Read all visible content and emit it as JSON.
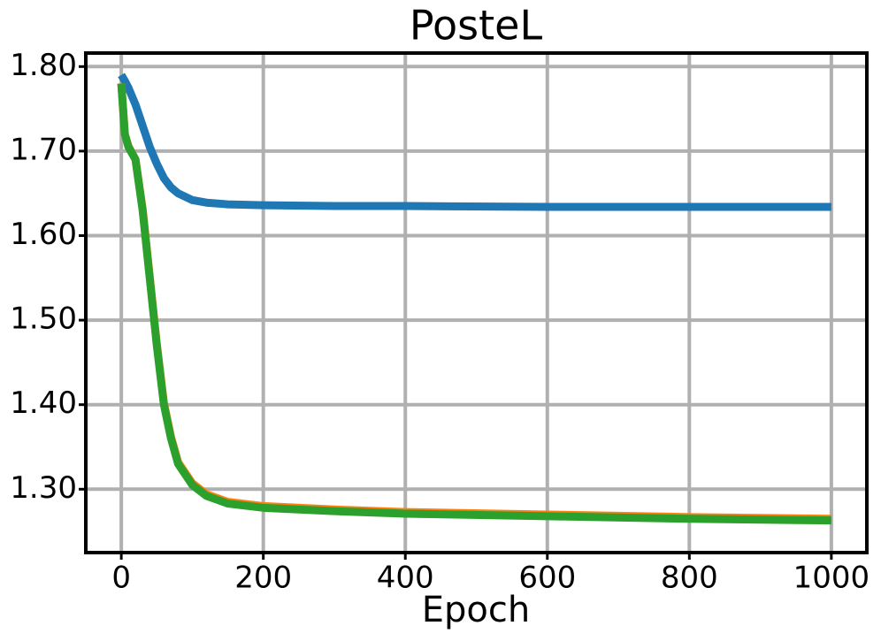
{
  "chart_data": {
    "type": "line",
    "title": "PosteL",
    "xlabel": "Epoch",
    "x": [
      0,
      5,
      10,
      20,
      30,
      40,
      50,
      60,
      70,
      80,
      100,
      120,
      150,
      200,
      300,
      400,
      600,
      800,
      1000
    ],
    "series": [
      {
        "color": "#1f77b4",
        "values": [
          1.79,
          1.783,
          1.775,
          1.755,
          1.73,
          1.705,
          1.685,
          1.668,
          1.657,
          1.65,
          1.642,
          1.639,
          1.637,
          1.636,
          1.635,
          1.635,
          1.634,
          1.634,
          1.634
        ]
      },
      {
        "color": "#ff7f0e",
        "values": [
          1.78,
          1.72,
          1.706,
          1.69,
          1.632,
          1.552,
          1.472,
          1.402,
          1.362,
          1.332,
          1.307,
          1.294,
          1.285,
          1.28,
          1.276,
          1.273,
          1.27,
          1.267,
          1.265
        ]
      },
      {
        "color": "#2ca02c",
        "values": [
          1.78,
          1.72,
          1.705,
          1.69,
          1.63,
          1.55,
          1.47,
          1.4,
          1.36,
          1.33,
          1.305,
          1.292,
          1.283,
          1.278,
          1.274,
          1.271,
          1.268,
          1.265,
          1.263
        ]
      }
    ],
    "xlim": [
      -50,
      1050
    ],
    "xticks": [
      0,
      200,
      400,
      600,
      800,
      1000
    ],
    "ylim": [
      1.225,
      1.816
    ],
    "yticks": [
      {
        "value": 1.3,
        "label": "1.30"
      },
      {
        "value": 1.4,
        "label": "1.40"
      },
      {
        "value": 1.5,
        "label": "1.50"
      },
      {
        "value": 1.6,
        "label": "1.60"
      },
      {
        "value": 1.7,
        "label": "1.70"
      },
      {
        "value": 1.8,
        "label": "1.80"
      }
    ],
    "grid": true
  }
}
